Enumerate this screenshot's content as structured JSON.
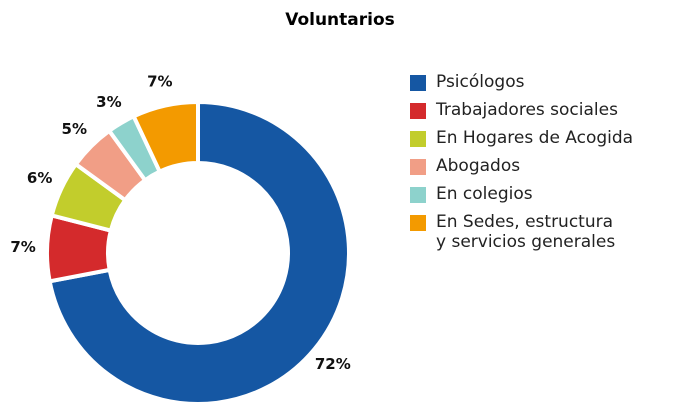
{
  "chart_data": {
    "type": "pie",
    "title": "Voluntarios",
    "categories": [
      "Psicólogos",
      "Trabajadores sociales",
      "En Hogares de Acogida",
      "Abogados",
      "En colegios",
      "En Sedes, estructura\ny servicios generales"
    ],
    "values": [
      72,
      7,
      6,
      5,
      3,
      7
    ],
    "value_labels": [
      "72%",
      "7%",
      "6%",
      "5%",
      "3%",
      "7%"
    ],
    "colors": [
      "#1557a3",
      "#d42a2c",
      "#c2cd2c",
      "#f19e86",
      "#8dd2cc",
      "#f39a00"
    ],
    "donut": true,
    "legend": "right"
  }
}
